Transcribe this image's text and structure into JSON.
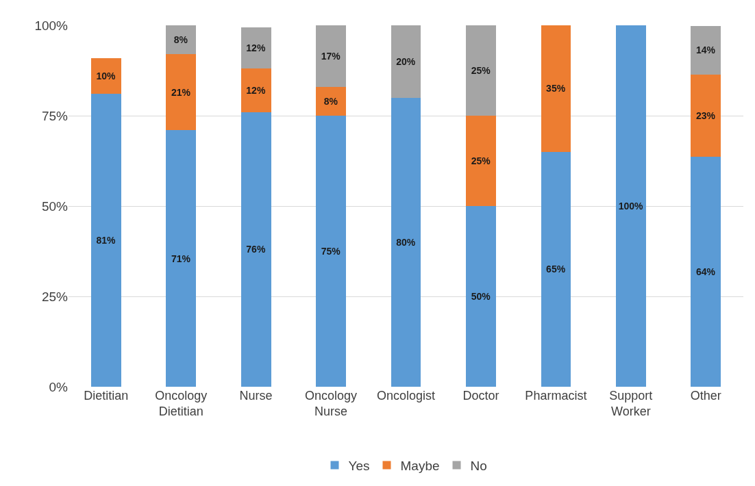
{
  "chart_data": {
    "type": "bar",
    "stacked": true,
    "categories": [
      "Dietitian",
      "Oncology Dietitian",
      "Nurse",
      "Oncology Nurse",
      "Oncologist",
      "Doctor",
      "Pharmacist",
      "Support Worker",
      "Other"
    ],
    "series": [
      {
        "name": "Yes",
        "color": "#5b9bd5",
        "values": [
          81,
          71,
          76,
          75,
          80,
          50,
          65,
          100,
          63.6
        ],
        "value_labels": [
          "81%",
          "71%",
          "76%",
          "75%",
          "80%",
          "50%",
          "65%",
          "100%",
          "64%"
        ]
      },
      {
        "name": "Maybe",
        "color": "#ed7d31",
        "values": [
          10,
          21,
          12,
          8,
          null,
          25,
          35,
          null,
          22.7
        ],
        "value_labels": [
          "10%",
          "21%",
          "12%",
          "8%",
          null,
          "25%",
          "35%",
          null,
          "23%"
        ]
      },
      {
        "name": "No",
        "color": "#a5a5a5",
        "values": [
          null,
          8,
          11.5,
          17,
          20,
          25,
          null,
          null,
          13.6
        ],
        "value_labels": [
          null,
          "8%",
          "12%",
          "17%",
          "20%",
          "25%",
          null,
          null,
          "14%"
        ]
      }
    ],
    "ylim": [
      0,
      100
    ],
    "yticks": [
      {
        "value": 0,
        "label": "0%"
      },
      {
        "value": 25,
        "label": "25%"
      },
      {
        "value": 50,
        "label": "50%"
      },
      {
        "value": 75,
        "label": "75%"
      },
      {
        "value": 100,
        "label": "100%"
      }
    ],
    "grid": "y",
    "legend": "bottom"
  }
}
